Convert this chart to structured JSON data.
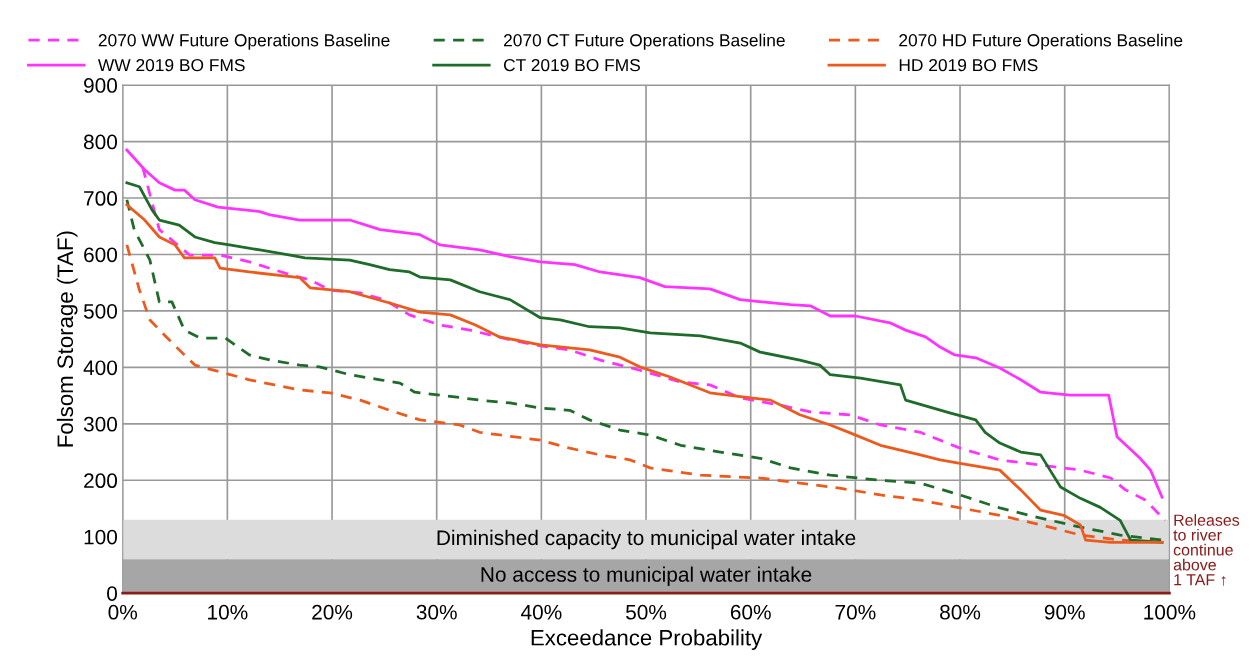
{
  "chart_data": {
    "type": "line",
    "xlabel": "Exceedance Probability",
    "ylabel": "Folsom Storage (TAF)",
    "xlim": [
      0,
      100
    ],
    "xticks": [
      {
        "value": 0,
        "label": "0%"
      },
      {
        "value": 10,
        "label": "10%"
      },
      {
        "value": 20,
        "label": "20%"
      },
      {
        "value": 30,
        "label": "30%"
      },
      {
        "value": 40,
        "label": "40%"
      },
      {
        "value": 50,
        "label": "50%"
      },
      {
        "value": 60,
        "label": "60%"
      },
      {
        "value": 70,
        "label": "70%"
      },
      {
        "value": 80,
        "label": "80%"
      },
      {
        "value": 90,
        "label": "90%"
      },
      {
        "value": 100,
        "label": "100%"
      }
    ],
    "ylim": [
      0,
      900
    ],
    "yticks": [
      0,
      100,
      200,
      300,
      400,
      500,
      600,
      700,
      800,
      900
    ],
    "grid": true,
    "legend": "top",
    "marker": "none",
    "series": [
      {
        "name": "2070 WW Future Operations Baseline",
        "color": "#ff33ff",
        "line_style": "dashed",
        "x": [
          1.9,
          3.5,
          6.4,
          9.3,
          12.1,
          16.0,
          17.9,
          19.8,
          22.7,
          25.0,
          27.4,
          30.3,
          33.2,
          37.0,
          39.9,
          42.7,
          45.6,
          49.4,
          53.3,
          56.1,
          59.0,
          62.8,
          65.7,
          69.5,
          72.4,
          76.2,
          80.0,
          83.8,
          87.7,
          91.5,
          94.4,
          95.8,
          97.7,
          99.6
        ],
        "values": [
          755,
          644,
          599,
          599,
          587,
          564,
          555,
          537,
          532,
          520,
          493,
          475,
          466,
          449,
          438,
          431,
          413,
          395,
          374,
          369,
          346,
          333,
          321,
          316,
          298,
          285,
          257,
          236,
          227,
          218,
          204,
          183,
          165,
          129
        ]
      },
      {
        "name": "2070 CT Future Operations Baseline",
        "color": "#1e6b2a",
        "line_style": "dashed",
        "x": [
          0.4,
          1.1,
          2.6,
          3.5,
          4.7,
          5.9,
          7.4,
          9.8,
          12.1,
          14.1,
          16.9,
          18.8,
          21.7,
          24.6,
          26.5,
          27.9,
          30.3,
          34.1,
          37.0,
          39.9,
          42.7,
          44.6,
          47.5,
          50.4,
          53.3,
          57.1,
          60.9,
          63.8,
          67.6,
          72.4,
          76.2,
          80.0,
          83.8,
          87.7,
          91.5,
          95.3,
          99.3
        ],
        "values": [
          697,
          644,
          590,
          516,
          516,
          466,
          452,
          452,
          422,
          413,
          404,
          401,
          387,
          378,
          372,
          356,
          351,
          342,
          337,
          328,
          324,
          307,
          289,
          280,
          262,
          250,
          239,
          222,
          209,
          200,
          195,
          174,
          151,
          133,
          117,
          103,
          94
        ]
      },
      {
        "name": "2070 HD Future Operations Baseline",
        "color": "#ec5a1e",
        "line_style": "dashed",
        "x": [
          0.4,
          1.6,
          2.6,
          4.0,
          5.4,
          6.9,
          9.3,
          12.1,
          14.5,
          16.9,
          19.8,
          22.7,
          25.5,
          28.4,
          32.2,
          34.1,
          37.0,
          39.9,
          42.7,
          45.6,
          48.5,
          50.4,
          55.2,
          60.9,
          64.7,
          68.5,
          72.4,
          76.2,
          80.0,
          83.8,
          87.7,
          91.5,
          95.3,
          99.3
        ],
        "values": [
          617,
          537,
          484,
          457,
          431,
          404,
          392,
          378,
          369,
          360,
          355,
          342,
          324,
          307,
          298,
          285,
          278,
          271,
          257,
          245,
          236,
          222,
          209,
          204,
          195,
          186,
          174,
          165,
          151,
          138,
          121,
          103,
          94,
          90
        ]
      },
      {
        "name": "WW 2019 BO FMS",
        "color": "#ff33ff",
        "line_style": "solid",
        "x": [
          0.4,
          2.1,
          3.5,
          5.0,
          5.9,
          6.9,
          9.1,
          13.1,
          14.1,
          16.9,
          21.7,
          24.6,
          28.4,
          30.3,
          34.1,
          37.0,
          39.9,
          43.2,
          45.6,
          49.4,
          51.8,
          56.1,
          59.0,
          63.8,
          65.7,
          67.6,
          70.0,
          73.3,
          74.8,
          76.7,
          78.1,
          79.5,
          81.5,
          83.8,
          85.8,
          87.7,
          90.5,
          94.2,
          95.0,
          97.2,
          98.2,
          99.3
        ],
        "values": [
          785,
          750,
          727,
          714,
          714,
          697,
          684,
          676,
          670,
          661,
          661,
          644,
          635,
          617,
          608,
          596,
          587,
          582,
          569,
          559,
          543,
          539,
          520,
          511,
          509,
          491,
          491,
          479,
          466,
          454,
          436,
          422,
          417,
          399,
          378,
          356,
          351,
          351,
          277,
          239,
          218,
          170
        ]
      },
      {
        "name": "CT 2019 BO FMS",
        "color": "#1e6b2a",
        "line_style": "solid",
        "x": [
          0.4,
          1.6,
          2.8,
          3.5,
          5.4,
          6.9,
          8.8,
          10.2,
          13.1,
          16.0,
          17.4,
          21.7,
          23.6,
          25.5,
          27.4,
          28.4,
          31.3,
          34.1,
          37.0,
          39.9,
          41.8,
          44.6,
          47.5,
          50.4,
          55.2,
          59.0,
          60.9,
          64.7,
          66.6,
          67.6,
          70.5,
          74.3,
          74.8,
          79.1,
          81.5,
          82.4,
          83.8,
          85.8,
          87.7,
          88.6,
          89.6,
          91.5,
          93.4,
          95.3,
          96.3,
          99.3
        ],
        "values": [
          727,
          720,
          679,
          661,
          652,
          631,
          621,
          617,
          608,
          599,
          594,
          590,
          582,
          573,
          569,
          560,
          555,
          534,
          520,
          488,
          484,
          472,
          470,
          461,
          456,
          443,
          427,
          413,
          404,
          387,
          381,
          369,
          342,
          319,
          307,
          285,
          266,
          250,
          245,
          218,
          188,
          168,
          152,
          129,
          94,
          90
        ]
      },
      {
        "name": "HD 2019 BO FMS",
        "color": "#ec5a1e",
        "line_style": "solid",
        "x": [
          0.4,
          2.1,
          3.5,
          5.0,
          5.9,
          8.8,
          9.3,
          12.1,
          16.9,
          17.9,
          21.7,
          25.5,
          28.4,
          31.3,
          33.7,
          36.0,
          39.9,
          44.6,
          47.5,
          49.4,
          52.3,
          56.1,
          59.0,
          61.9,
          64.7,
          67.6,
          69.5,
          72.4,
          76.2,
          78.1,
          80.0,
          83.8,
          85.8,
          87.7,
          89.9,
          91.5,
          92.0,
          94.4,
          99.3
        ],
        "values": [
          688,
          661,
          631,
          617,
          594,
          594,
          576,
          569,
          559,
          541,
          534,
          514,
          498,
          493,
          475,
          454,
          440,
          431,
          418,
          401,
          383,
          355,
          348,
          342,
          316,
          298,
          284,
          262,
          245,
          236,
          230,
          218,
          183,
          147,
          138,
          121,
          94,
          90,
          90
        ]
      }
    ],
    "bands": [
      {
        "axis": "y",
        "from": 60,
        "to": 130,
        "label": "Diminished capacity to municipal water intake",
        "color": "#dcdcdc"
      },
      {
        "axis": "y",
        "from": 0,
        "to": 60,
        "label": "No access to municipal water intake",
        "color": "#a6a6a6"
      }
    ],
    "annotations": [
      "Releases\nto river\ncontinue\nabove\n1 TAF ↑"
    ]
  }
}
